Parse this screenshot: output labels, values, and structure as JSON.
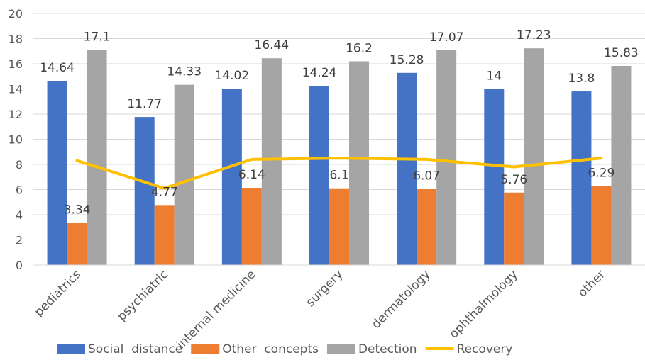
{
  "chart_data": {
    "type": "bar",
    "categories": [
      "pediatrics",
      "psychiatric",
      "internal medicine",
      "surgery",
      "dermatology",
      "ophthalmology",
      "other"
    ],
    "series": [
      {
        "name": "Social  distance",
        "kind": "bar",
        "color": "#4472C4",
        "values": [
          14.64,
          11.77,
          14.02,
          14.24,
          15.28,
          14,
          13.8
        ],
        "data_labels": [
          "14.64",
          "11.77",
          "14.02",
          "14.24",
          "15.28",
          "14",
          "13.8"
        ]
      },
      {
        "name": "Other  concepts",
        "kind": "bar",
        "color": "#ED7D31",
        "values": [
          3.34,
          4.77,
          6.14,
          6.1,
          6.07,
          5.76,
          6.29
        ],
        "data_labels": [
          "3.34",
          "4.77",
          "6.14",
          "6.1",
          "6.07",
          "5.76",
          "6.29"
        ]
      },
      {
        "name": "Detection",
        "kind": "bar",
        "color": "#A5A5A5",
        "values": [
          17.1,
          14.33,
          16.44,
          16.2,
          17.07,
          17.23,
          15.83
        ],
        "data_labels": [
          "17.1",
          "14.33",
          "16.44",
          "16.2",
          "17.07",
          "17.23",
          "15.83"
        ]
      },
      {
        "name": "Recovery",
        "kind": "line",
        "color": "#FFC000",
        "values": [
          8.3,
          6.1,
          8.4,
          8.5,
          8.4,
          7.8,
          8.5
        ]
      }
    ],
    "ylim": [
      0,
      20
    ],
    "yticks": [
      "0",
      "2",
      "4",
      "6",
      "8",
      "10",
      "12",
      "14",
      "16",
      "18",
      "20"
    ],
    "grid": true,
    "legend_position": "bottom"
  }
}
